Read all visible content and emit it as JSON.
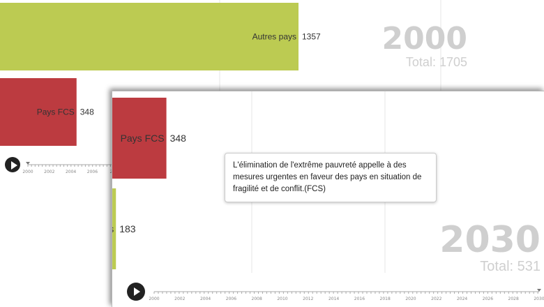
{
  "chart_data": [
    {
      "type": "bar",
      "orientation": "horizontal",
      "year": "2000",
      "total_label": "Total: 1705",
      "xlim": [
        0,
        1357
      ],
      "grid": true,
      "bars": [
        {
          "name": "Autres pays",
          "value": 1357,
          "value_label": "1357",
          "color": "#bccb52"
        },
        {
          "name": "Pays FCS",
          "value": 348,
          "value_label": "348",
          "color": "#bc3b40"
        }
      ],
      "timeline_ticks": [
        "2000",
        "2002",
        "2004",
        "2006",
        "200"
      ]
    },
    {
      "type": "bar",
      "orientation": "horizontal",
      "year": "2030",
      "total_label": "Total: 531",
      "xlim": [
        0,
        1357
      ],
      "grid": true,
      "bars": [
        {
          "name": "Pays FCS",
          "value": 348,
          "value_label": "348",
          "color": "#bc3b40"
        },
        {
          "name": "Autres pays",
          "value": 183,
          "value_label": "183",
          "color": "#bccb52"
        }
      ],
      "timeline_ticks": [
        "2000",
        "2002",
        "2004",
        "2006",
        "2008",
        "2010",
        "2012",
        "2014",
        "2016",
        "2018",
        "2020",
        "2022",
        "2024",
        "2026",
        "2028",
        "2030"
      ]
    }
  ],
  "tooltip": {
    "text": "L'élimination de l'extrême pauvreté appelle à des mesures urgentes en faveur des pays en situation de fragilité et de conflit.",
    "suffix": "(FCS)"
  }
}
